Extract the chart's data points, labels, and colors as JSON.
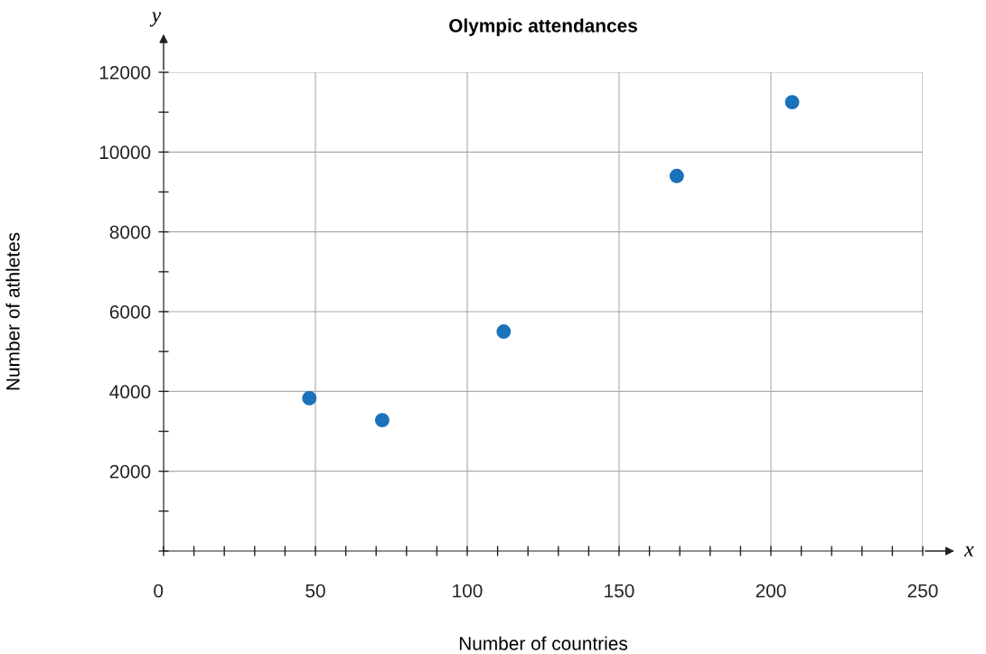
{
  "chart_data": {
    "type": "scatter",
    "title": "Olympic attendances",
    "xlabel": "Number of countries",
    "ylabel": "Number of athletes",
    "annotations": [
      "y",
      "x"
    ],
    "x": [
      48,
      72,
      112,
      169,
      207
    ],
    "series": [
      {
        "color": "#1a72bb",
        "values": [
          3830,
          3280,
          5500,
          9400,
          11250
        ]
      }
    ],
    "marker": "circle",
    "grid": true,
    "xlim": [
      0,
      250
    ],
    "ylim": [
      0,
      12000
    ],
    "xticks": [
      0,
      {
        "value": 10,
        "label": null
      },
      {
        "value": 20,
        "label": null
      },
      {
        "value": 30,
        "label": null
      },
      {
        "value": 40,
        "label": null
      },
      50,
      {
        "value": 60,
        "label": null
      },
      {
        "value": 70,
        "label": null
      },
      {
        "value": 80,
        "label": null
      },
      {
        "value": 90,
        "label": null
      },
      100,
      {
        "value": 110,
        "label": null
      },
      {
        "value": 120,
        "label": null
      },
      {
        "value": 130,
        "label": null
      },
      {
        "value": 140,
        "label": null
      },
      150,
      {
        "value": 160,
        "label": null
      },
      {
        "value": 170,
        "label": null
      },
      {
        "value": 180,
        "label": null
      },
      {
        "value": 190,
        "label": null
      },
      200,
      {
        "value": 210,
        "label": null
      },
      {
        "value": 220,
        "label": null
      },
      {
        "value": 230,
        "label": null
      },
      {
        "value": 240,
        "label": null
      },
      250
    ],
    "yticks": [
      {
        "value": 0,
        "label": null
      },
      {
        "value": 1000,
        "label": null
      },
      2000,
      {
        "value": 3000,
        "label": null
      },
      4000,
      {
        "value": 5000,
        "label": null
      },
      6000,
      {
        "value": 7000,
        "label": null
      },
      8000,
      {
        "value": 9000,
        "label": null
      },
      10000,
      {
        "value": 11000,
        "label": null
      },
      12000
    ]
  }
}
